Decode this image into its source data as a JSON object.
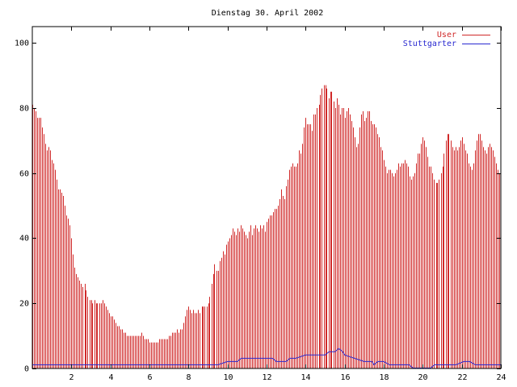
{
  "chart_data": {
    "type": "bar",
    "title": "Dienstag 30. April 2002",
    "xlabel": "",
    "ylabel": "",
    "xlim": [
      0,
      24
    ],
    "ylim": [
      0,
      105
    ],
    "x_ticks": [
      2,
      4,
      6,
      8,
      10,
      12,
      14,
      16,
      18,
      20,
      22,
      24
    ],
    "y_ticks": [
      0,
      20,
      40,
      60,
      80,
      100
    ],
    "grid": false,
    "legend_position": "top-right",
    "colors": {
      "user": "#d02828",
      "stuttgarter": "#2828d0",
      "axis": "#000000"
    },
    "series": [
      {
        "name": "User",
        "style": "impulses",
        "points": [
          [
            0.0,
            81
          ],
          [
            0.08,
            80
          ],
          [
            0.17,
            79
          ],
          [
            0.25,
            77
          ],
          [
            0.33,
            77
          ],
          [
            0.42,
            77
          ],
          [
            0.5,
            74
          ],
          [
            0.58,
            72
          ],
          [
            0.67,
            69
          ],
          [
            0.75,
            67
          ],
          [
            0.83,
            68
          ],
          [
            0.92,
            67
          ],
          [
            1.0,
            64
          ],
          [
            1.08,
            63
          ],
          [
            1.17,
            61
          ],
          [
            1.25,
            58
          ],
          [
            1.33,
            55
          ],
          [
            1.42,
            55
          ],
          [
            1.5,
            54
          ],
          [
            1.58,
            53
          ],
          [
            1.67,
            50
          ],
          [
            1.75,
            47
          ],
          [
            1.83,
            46
          ],
          [
            1.92,
            44
          ],
          [
            2.0,
            40
          ],
          [
            2.08,
            35
          ],
          [
            2.17,
            31
          ],
          [
            2.25,
            29
          ],
          [
            2.33,
            28
          ],
          [
            2.42,
            27
          ],
          [
            2.5,
            26
          ],
          [
            2.58,
            25
          ],
          [
            2.67,
            26
          ],
          [
            2.75,
            24
          ],
          [
            2.83,
            22
          ],
          [
            2.92,
            21
          ],
          [
            3.0,
            21
          ],
          [
            3.08,
            20
          ],
          [
            3.17,
            21
          ],
          [
            3.25,
            20
          ],
          [
            3.33,
            20
          ],
          [
            3.42,
            20
          ],
          [
            3.5,
            20
          ],
          [
            3.58,
            21
          ],
          [
            3.67,
            20
          ],
          [
            3.75,
            19
          ],
          [
            3.83,
            18
          ],
          [
            3.92,
            17
          ],
          [
            4.0,
            16
          ],
          [
            4.08,
            16
          ],
          [
            4.17,
            15
          ],
          [
            4.25,
            14
          ],
          [
            4.33,
            13
          ],
          [
            4.42,
            13
          ],
          [
            4.5,
            12
          ],
          [
            4.58,
            12
          ],
          [
            4.67,
            11
          ],
          [
            4.75,
            11
          ],
          [
            4.83,
            10
          ],
          [
            4.92,
            10
          ],
          [
            5.0,
            10
          ],
          [
            5.08,
            10
          ],
          [
            5.17,
            10
          ],
          [
            5.25,
            10
          ],
          [
            5.33,
            10
          ],
          [
            5.42,
            10
          ],
          [
            5.5,
            10
          ],
          [
            5.58,
            11
          ],
          [
            5.67,
            10
          ],
          [
            5.75,
            9
          ],
          [
            5.83,
            9
          ],
          [
            5.92,
            9
          ],
          [
            6.0,
            8
          ],
          [
            6.08,
            8
          ],
          [
            6.17,
            8
          ],
          [
            6.25,
            8
          ],
          [
            6.33,
            8
          ],
          [
            6.42,
            8
          ],
          [
            6.5,
            9
          ],
          [
            6.58,
            9
          ],
          [
            6.67,
            9
          ],
          [
            6.75,
            9
          ],
          [
            6.83,
            9
          ],
          [
            6.92,
            9
          ],
          [
            7.0,
            10
          ],
          [
            7.08,
            10
          ],
          [
            7.17,
            11
          ],
          [
            7.25,
            11
          ],
          [
            7.33,
            11
          ],
          [
            7.42,
            12
          ],
          [
            7.5,
            11
          ],
          [
            7.58,
            12
          ],
          [
            7.67,
            12
          ],
          [
            7.75,
            14
          ],
          [
            7.83,
            16
          ],
          [
            7.92,
            18
          ],
          [
            8.0,
            19
          ],
          [
            8.08,
            18
          ],
          [
            8.17,
            17
          ],
          [
            8.25,
            18
          ],
          [
            8.33,
            17
          ],
          [
            8.42,
            17
          ],
          [
            8.5,
            18
          ],
          [
            8.58,
            17
          ],
          [
            8.67,
            19
          ],
          [
            8.75,
            19
          ],
          [
            8.83,
            19
          ],
          [
            8.92,
            19
          ],
          [
            9.0,
            20
          ],
          [
            9.08,
            22
          ],
          [
            9.17,
            26
          ],
          [
            9.25,
            29
          ],
          [
            9.33,
            32
          ],
          [
            9.42,
            30
          ],
          [
            9.5,
            30
          ],
          [
            9.58,
            33
          ],
          [
            9.67,
            34
          ],
          [
            9.75,
            36
          ],
          [
            9.83,
            35
          ],
          [
            9.92,
            38
          ],
          [
            10.0,
            39
          ],
          [
            10.08,
            40
          ],
          [
            10.17,
            41
          ],
          [
            10.25,
            43
          ],
          [
            10.33,
            42
          ],
          [
            10.42,
            41
          ],
          [
            10.5,
            43
          ],
          [
            10.58,
            42
          ],
          [
            10.67,
            44
          ],
          [
            10.75,
            43
          ],
          [
            10.83,
            42
          ],
          [
            10.92,
            41
          ],
          [
            11.0,
            40
          ],
          [
            11.08,
            42
          ],
          [
            11.17,
            44
          ],
          [
            11.25,
            41
          ],
          [
            11.33,
            43
          ],
          [
            11.42,
            44
          ],
          [
            11.5,
            43
          ],
          [
            11.58,
            42
          ],
          [
            11.67,
            44
          ],
          [
            11.75,
            43
          ],
          [
            11.83,
            44
          ],
          [
            11.92,
            42
          ],
          [
            12.0,
            45
          ],
          [
            12.08,
            46
          ],
          [
            12.17,
            47
          ],
          [
            12.25,
            47
          ],
          [
            12.33,
            48
          ],
          [
            12.42,
            49
          ],
          [
            12.5,
            49
          ],
          [
            12.58,
            50
          ],
          [
            12.67,
            52
          ],
          [
            12.75,
            55
          ],
          [
            12.83,
            53
          ],
          [
            12.92,
            52
          ],
          [
            13.0,
            56
          ],
          [
            13.08,
            58
          ],
          [
            13.17,
            61
          ],
          [
            13.25,
            62
          ],
          [
            13.33,
            63
          ],
          [
            13.42,
            62
          ],
          [
            13.5,
            62
          ],
          [
            13.58,
            63
          ],
          [
            13.67,
            67
          ],
          [
            13.75,
            66
          ],
          [
            13.83,
            69
          ],
          [
            13.92,
            74
          ],
          [
            14.0,
            77
          ],
          [
            14.08,
            75
          ],
          [
            14.17,
            75
          ],
          [
            14.25,
            75
          ],
          [
            14.33,
            73
          ],
          [
            14.42,
            78
          ],
          [
            14.5,
            78
          ],
          [
            14.58,
            80
          ],
          [
            14.67,
            81
          ],
          [
            14.75,
            84
          ],
          [
            14.83,
            86
          ],
          [
            14.92,
            87
          ],
          [
            15.0,
            87
          ],
          [
            15.08,
            86
          ],
          [
            15.17,
            83
          ],
          [
            15.25,
            85
          ],
          [
            15.33,
            85
          ],
          [
            15.42,
            82
          ],
          [
            15.5,
            80
          ],
          [
            15.58,
            83
          ],
          [
            15.67,
            81
          ],
          [
            15.75,
            78
          ],
          [
            15.83,
            80
          ],
          [
            15.92,
            80
          ],
          [
            16.0,
            77
          ],
          [
            16.08,
            79
          ],
          [
            16.17,
            80
          ],
          [
            16.25,
            78
          ],
          [
            16.33,
            76
          ],
          [
            16.42,
            74
          ],
          [
            16.5,
            71
          ],
          [
            16.58,
            68
          ],
          [
            16.67,
            69
          ],
          [
            16.75,
            74
          ],
          [
            16.83,
            78
          ],
          [
            16.92,
            79
          ],
          [
            17.0,
            76
          ],
          [
            17.08,
            77
          ],
          [
            17.17,
            79
          ],
          [
            17.25,
            79
          ],
          [
            17.33,
            76
          ],
          [
            17.42,
            75
          ],
          [
            17.5,
            75
          ],
          [
            17.58,
            74
          ],
          [
            17.67,
            72
          ],
          [
            17.75,
            71
          ],
          [
            17.83,
            68
          ],
          [
            17.92,
            67
          ],
          [
            18.0,
            64
          ],
          [
            18.08,
            62
          ],
          [
            18.17,
            60
          ],
          [
            18.25,
            61
          ],
          [
            18.33,
            61
          ],
          [
            18.42,
            60
          ],
          [
            18.5,
            59
          ],
          [
            18.58,
            60
          ],
          [
            18.67,
            61
          ],
          [
            18.75,
            63
          ],
          [
            18.83,
            62
          ],
          [
            18.92,
            63
          ],
          [
            19.0,
            63
          ],
          [
            19.08,
            64
          ],
          [
            19.17,
            63
          ],
          [
            19.25,
            62
          ],
          [
            19.33,
            59
          ],
          [
            19.42,
            58
          ],
          [
            19.5,
            59
          ],
          [
            19.58,
            60
          ],
          [
            19.67,
            63
          ],
          [
            19.75,
            66
          ],
          [
            19.83,
            66
          ],
          [
            19.92,
            69
          ],
          [
            20.0,
            71
          ],
          [
            20.08,
            70
          ],
          [
            20.17,
            68
          ],
          [
            20.25,
            65
          ],
          [
            20.33,
            62
          ],
          [
            20.42,
            62
          ],
          [
            20.5,
            60
          ],
          [
            20.58,
            58
          ],
          [
            20.67,
            57
          ],
          [
            20.75,
            57
          ],
          [
            20.83,
            58
          ],
          [
            20.92,
            60
          ],
          [
            21.0,
            62
          ],
          [
            21.08,
            66
          ],
          [
            21.17,
            70
          ],
          [
            21.25,
            72
          ],
          [
            21.33,
            72
          ],
          [
            21.42,
            70
          ],
          [
            21.5,
            68
          ],
          [
            21.58,
            67
          ],
          [
            21.67,
            68
          ],
          [
            21.75,
            67
          ],
          [
            21.83,
            68
          ],
          [
            21.92,
            70
          ],
          [
            22.0,
            71
          ],
          [
            22.08,
            69
          ],
          [
            22.17,
            67
          ],
          [
            22.25,
            66
          ],
          [
            22.33,
            63
          ],
          [
            22.42,
            62
          ],
          [
            22.5,
            61
          ],
          [
            22.58,
            63
          ],
          [
            22.67,
            67
          ],
          [
            22.75,
            70
          ],
          [
            22.83,
            72
          ],
          [
            22.92,
            72
          ],
          [
            23.0,
            70
          ],
          [
            23.08,
            68
          ],
          [
            23.17,
            67
          ],
          [
            23.25,
            66
          ],
          [
            23.33,
            68
          ],
          [
            23.42,
            69
          ],
          [
            23.5,
            68
          ],
          [
            23.58,
            67
          ],
          [
            23.67,
            65
          ],
          [
            23.75,
            63
          ],
          [
            23.83,
            61
          ],
          [
            23.92,
            60
          ]
        ]
      },
      {
        "name": "Stuttgarter",
        "style": "line",
        "points": [
          [
            0,
            1
          ],
          [
            9.0,
            1
          ],
          [
            9.5,
            1
          ],
          [
            10.0,
            2
          ],
          [
            10.5,
            2
          ],
          [
            10.7,
            3
          ],
          [
            11.5,
            3
          ],
          [
            12.3,
            3
          ],
          [
            12.5,
            2
          ],
          [
            13.0,
            2
          ],
          [
            13.2,
            3
          ],
          [
            13.5,
            3
          ],
          [
            14.0,
            4
          ],
          [
            14.5,
            4
          ],
          [
            15.0,
            4
          ],
          [
            15.2,
            5
          ],
          [
            15.5,
            5
          ],
          [
            15.7,
            6
          ],
          [
            15.9,
            5
          ],
          [
            16.0,
            4
          ],
          [
            16.5,
            3
          ],
          [
            17.0,
            2
          ],
          [
            17.4,
            2
          ],
          [
            17.5,
            1
          ],
          [
            17.7,
            2
          ],
          [
            18.0,
            2
          ],
          [
            18.3,
            1
          ],
          [
            19.0,
            1
          ],
          [
            19.3,
            1
          ],
          [
            19.5,
            0
          ],
          [
            20.4,
            0
          ],
          [
            20.6,
            1
          ],
          [
            21.0,
            1
          ],
          [
            21.7,
            1
          ],
          [
            22.1,
            2
          ],
          [
            22.4,
            2
          ],
          [
            22.7,
            1
          ],
          [
            23.0,
            1
          ],
          [
            24.0,
            1
          ]
        ]
      }
    ]
  }
}
